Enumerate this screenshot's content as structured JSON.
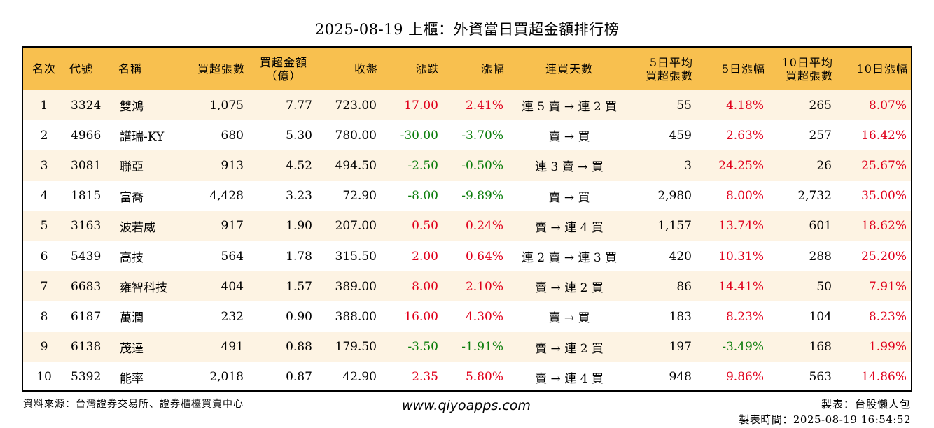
{
  "title": "2025-08-19 上櫃：外資當日買超金額排行榜",
  "headers": {
    "rank": "名次",
    "code": "代號",
    "name": "名稱",
    "buy_lots": "買超張數",
    "buy_amount_1": "買超金額",
    "buy_amount_2": "（億）",
    "close": "收盤",
    "change": "漲跌",
    "change_pct": "漲幅",
    "streak": "連買天數",
    "avg5_1": "5日平均",
    "avg5_2": "買超張數",
    "pct5": "5日漲幅",
    "avg10_1": "10日平均",
    "avg10_2": "買超張數",
    "pct10": "10日漲幅"
  },
  "rows": [
    {
      "rank": "1",
      "code": "3324",
      "name": "雙鴻",
      "buy_lots": "1,075",
      "amount": "7.77",
      "close": "723.00",
      "change": "17.00",
      "change_pct": "2.41%",
      "streak": "連 5 賣 → 連 2 買",
      "avg5": "55",
      "pct5": "4.18%",
      "avg10": "265",
      "pct10": "8.07%"
    },
    {
      "rank": "2",
      "code": "4966",
      "name": "譜瑞-KY",
      "buy_lots": "680",
      "amount": "5.30",
      "close": "780.00",
      "change": "-30.00",
      "change_pct": "-3.70%",
      "streak": "賣 → 買",
      "avg5": "459",
      "pct5": "2.63%",
      "avg10": "257",
      "pct10": "16.42%"
    },
    {
      "rank": "3",
      "code": "3081",
      "name": "聯亞",
      "buy_lots": "913",
      "amount": "4.52",
      "close": "494.50",
      "change": "-2.50",
      "change_pct": "-0.50%",
      "streak": "連 3 賣 → 買",
      "avg5": "3",
      "pct5": "24.25%",
      "avg10": "26",
      "pct10": "25.67%"
    },
    {
      "rank": "4",
      "code": "1815",
      "name": "富喬",
      "buy_lots": "4,428",
      "amount": "3.23",
      "close": "72.90",
      "change": "-8.00",
      "change_pct": "-9.89%",
      "streak": "賣 → 買",
      "avg5": "2,980",
      "pct5": "8.00%",
      "avg10": "2,732",
      "pct10": "35.00%"
    },
    {
      "rank": "5",
      "code": "3163",
      "name": "波若威",
      "buy_lots": "917",
      "amount": "1.90",
      "close": "207.00",
      "change": "0.50",
      "change_pct": "0.24%",
      "streak": "賣 → 連 4 買",
      "avg5": "1,157",
      "pct5": "13.74%",
      "avg10": "601",
      "pct10": "18.62%"
    },
    {
      "rank": "6",
      "code": "5439",
      "name": "高技",
      "buy_lots": "564",
      "amount": "1.78",
      "close": "315.50",
      "change": "2.00",
      "change_pct": "0.64%",
      "streak": "連 2 賣 → 連 3 買",
      "avg5": "420",
      "pct5": "10.31%",
      "avg10": "288",
      "pct10": "25.20%"
    },
    {
      "rank": "7",
      "code": "6683",
      "name": "雍智科技",
      "buy_lots": "404",
      "amount": "1.57",
      "close": "389.00",
      "change": "8.00",
      "change_pct": "2.10%",
      "streak": "賣 → 連 2 買",
      "avg5": "86",
      "pct5": "14.41%",
      "avg10": "50",
      "pct10": "7.91%"
    },
    {
      "rank": "8",
      "code": "6187",
      "name": "萬潤",
      "buy_lots": "232",
      "amount": "0.90",
      "close": "388.00",
      "change": "16.00",
      "change_pct": "4.30%",
      "streak": "賣 → 買",
      "avg5": "183",
      "pct5": "8.23%",
      "avg10": "104",
      "pct10": "8.23%"
    },
    {
      "rank": "9",
      "code": "6138",
      "name": "茂達",
      "buy_lots": "491",
      "amount": "0.88",
      "close": "179.50",
      "change": "-3.50",
      "change_pct": "-1.91%",
      "streak": "賣 → 連 2 買",
      "avg5": "197",
      "pct5": "-3.49%",
      "avg10": "168",
      "pct10": "1.99%"
    },
    {
      "rank": "10",
      "code": "5392",
      "name": "能率",
      "buy_lots": "2,018",
      "amount": "0.87",
      "close": "42.90",
      "change": "2.35",
      "change_pct": "5.80%",
      "streak": "賣 → 連 4 買",
      "avg5": "948",
      "pct5": "9.86%",
      "avg10": "563",
      "pct10": "14.86%"
    }
  ],
  "footer": {
    "source": "資料來源：台灣證券交易所、證券櫃檯買賣中心",
    "website": "www.qiyoapps.com",
    "maker": "製表：台股懶人包",
    "made_time": "製表時間：2025-08-19 16:54:52"
  },
  "colors": {
    "header_bg": "#f8c04f",
    "stripe_bg": "#fdf3e3",
    "up": "#e0001b",
    "down": "#0b7d0b"
  }
}
